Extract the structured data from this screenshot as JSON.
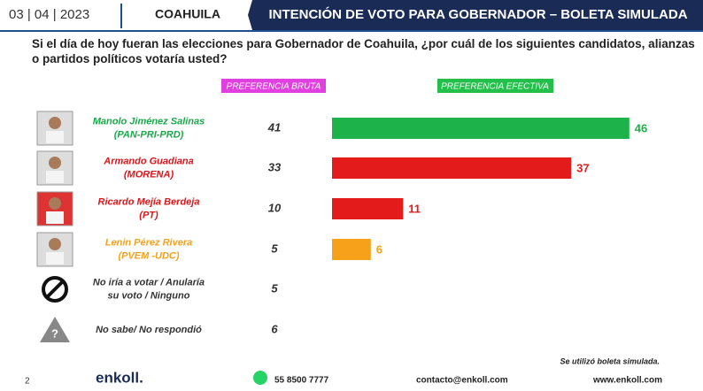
{
  "header": {
    "date": "03 | 04 | 2023",
    "region": "COAHUILA",
    "title": "INTENCIÓN DE VOTO PARA GOBERNADOR – BOLETA SIMULADA"
  },
  "question": "Si el día de hoy fueran las elecciones para Gobernador de Coahuila, ¿por cuál de los siguientes candidatos, alianzas o partidos políticos votaría usted?",
  "chart_data": {
    "type": "bar",
    "orientation": "horizontal",
    "categories": [
      [
        "Manolo Jiménez Salinas",
        "(PAN-PRI-PRD)"
      ],
      [
        "Armando Guadiana",
        "(MORENA)"
      ],
      [
        "Ricardo Mejía Berdeja",
        "(PT)"
      ],
      [
        "Lenin Pérez Rivera",
        "(PVEM -UDC)"
      ],
      [
        "No iría a votar / Anularía",
        "su voto / Ninguno"
      ],
      [
        "No sabe/ No respondió"
      ]
    ],
    "label_colors": [
      "#1aa84a",
      "#d9161b",
      "#d9161b",
      "#f2a11d",
      "#333333",
      "#333333"
    ],
    "series": [
      {
        "name": "PREFERENCIA BRUTA",
        "color": "#e040e0",
        "values": [
          41,
          33,
          10,
          5,
          5,
          6
        ]
      },
      {
        "name": "PREFERENCIA EFECTIVA",
        "color": "#22c04a",
        "values": [
          46,
          37,
          11,
          6,
          null,
          null
        ],
        "colors": [
          "#1db34a",
          "#e31b1b",
          "#e31b1b",
          "#f7a11a"
        ]
      }
    ],
    "xlim": [
      0,
      50
    ]
  },
  "footer": {
    "page": "2",
    "brand": "enkoll.",
    "phone": "55 8500 7777",
    "email": "contacto@enkoll.com",
    "web": "www.enkoll.com",
    "note": "Se utilizó boleta simulada."
  }
}
